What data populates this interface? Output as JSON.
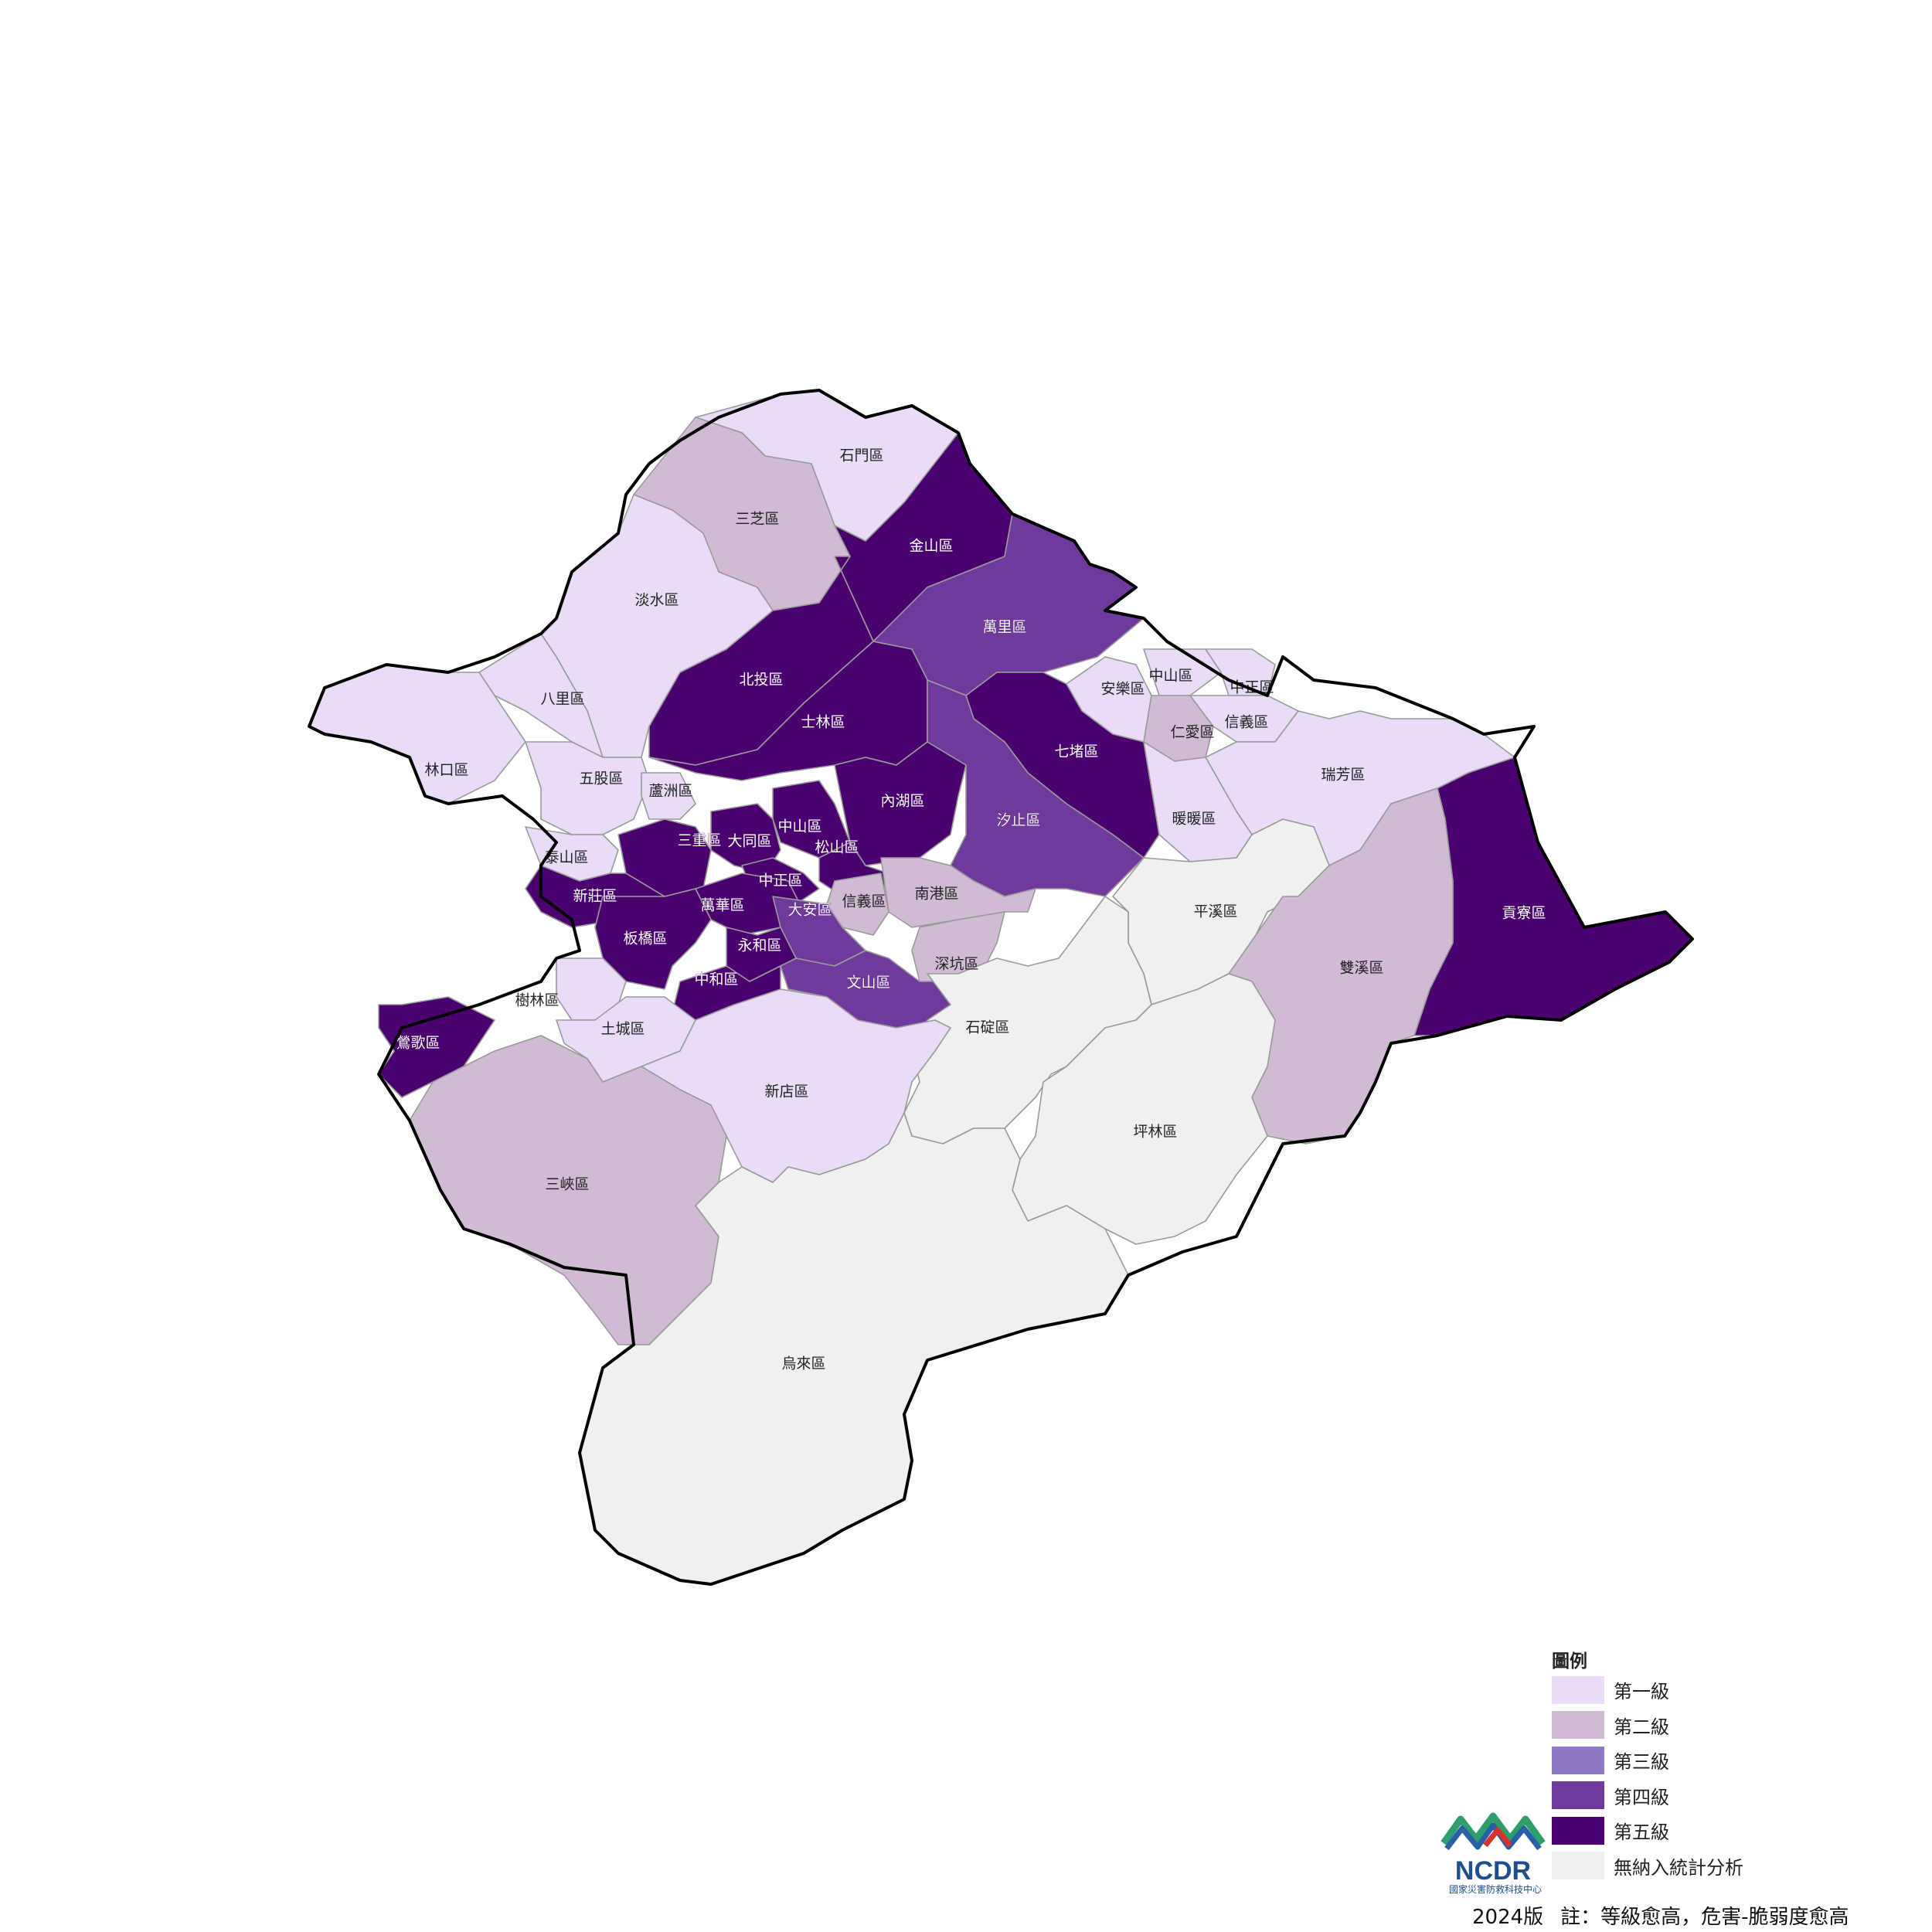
{
  "legend": {
    "title": "圖例",
    "items": [
      {
        "label": "第一級",
        "color": "#e8dcf8"
      },
      {
        "label": "第二級",
        "color": "#d0bad4"
      },
      {
        "label": "第三級",
        "color": "#8e78c4"
      },
      {
        "label": "第四級",
        "color": "#703a9c"
      },
      {
        "label": "第五級",
        "color": "#4a006f"
      },
      {
        "label": "無納入統計分析",
        "color": "#f0f0f0"
      }
    ]
  },
  "districts": [
    {
      "name": "石門區",
      "level": 1
    },
    {
      "name": "三芝區",
      "level": 2
    },
    {
      "name": "金山區",
      "level": 5
    },
    {
      "name": "淡水區",
      "level": 1
    },
    {
      "name": "萬里區",
      "level": 4
    },
    {
      "name": "八里區",
      "level": 1
    },
    {
      "name": "北投區",
      "level": 5
    },
    {
      "name": "士林區",
      "level": 5
    },
    {
      "name": "安樂區",
      "level": 1
    },
    {
      "name": "中山區",
      "level": 1,
      "city": "基隆"
    },
    {
      "name": "中正區",
      "level": 1,
      "city": "基隆"
    },
    {
      "name": "仁愛區",
      "level": 2
    },
    {
      "name": "信義區",
      "level": 1,
      "city": "基隆"
    },
    {
      "name": "七堵區",
      "level": 5
    },
    {
      "name": "林口區",
      "level": 1
    },
    {
      "name": "五股區",
      "level": 1
    },
    {
      "name": "蘆洲區",
      "level": 1
    },
    {
      "name": "瑞芳區",
      "level": 1
    },
    {
      "name": "內湖區",
      "level": 5
    },
    {
      "name": "暖暖區",
      "level": 1
    },
    {
      "name": "汐止區",
      "level": 4
    },
    {
      "name": "中山區",
      "level": 5,
      "city": "臺北"
    },
    {
      "name": "三重區",
      "level": 5
    },
    {
      "name": "大同區",
      "level": 5
    },
    {
      "name": "松山區",
      "level": 5
    },
    {
      "name": "泰山區",
      "level": 1
    },
    {
      "name": "中正區",
      "level": 5,
      "city": "臺北"
    },
    {
      "name": "新莊區",
      "level": 5
    },
    {
      "name": "南港區",
      "level": 2
    },
    {
      "name": "信義區",
      "level": 2,
      "city": "臺北"
    },
    {
      "name": "萬華區",
      "level": 5
    },
    {
      "name": "大安區",
      "level": 4
    },
    {
      "name": "貢寮區",
      "level": 5
    },
    {
      "name": "平溪區",
      "level": 0
    },
    {
      "name": "板橋區",
      "level": 5
    },
    {
      "name": "永和區",
      "level": 5
    },
    {
      "name": "深坑區",
      "level": 2
    },
    {
      "name": "雙溪區",
      "level": 2
    },
    {
      "name": "中和區",
      "level": 5
    },
    {
      "name": "文山區",
      "level": 4
    },
    {
      "name": "樹林區",
      "level": 1
    },
    {
      "name": "鶯歌區",
      "level": 5
    },
    {
      "name": "土城區",
      "level": 1
    },
    {
      "name": "石碇區",
      "level": 0
    },
    {
      "name": "新店區",
      "level": 1
    },
    {
      "name": "坪林區",
      "level": 0
    },
    {
      "name": "三峽區",
      "level": 2
    },
    {
      "name": "烏來區",
      "level": 0
    }
  ],
  "logo": {
    "text": "NCDR",
    "subtitle": "國家災害防救科技中心"
  },
  "footer": {
    "version": "2024版",
    "note": "註：等級愈高，危害-脆弱度愈高"
  }
}
